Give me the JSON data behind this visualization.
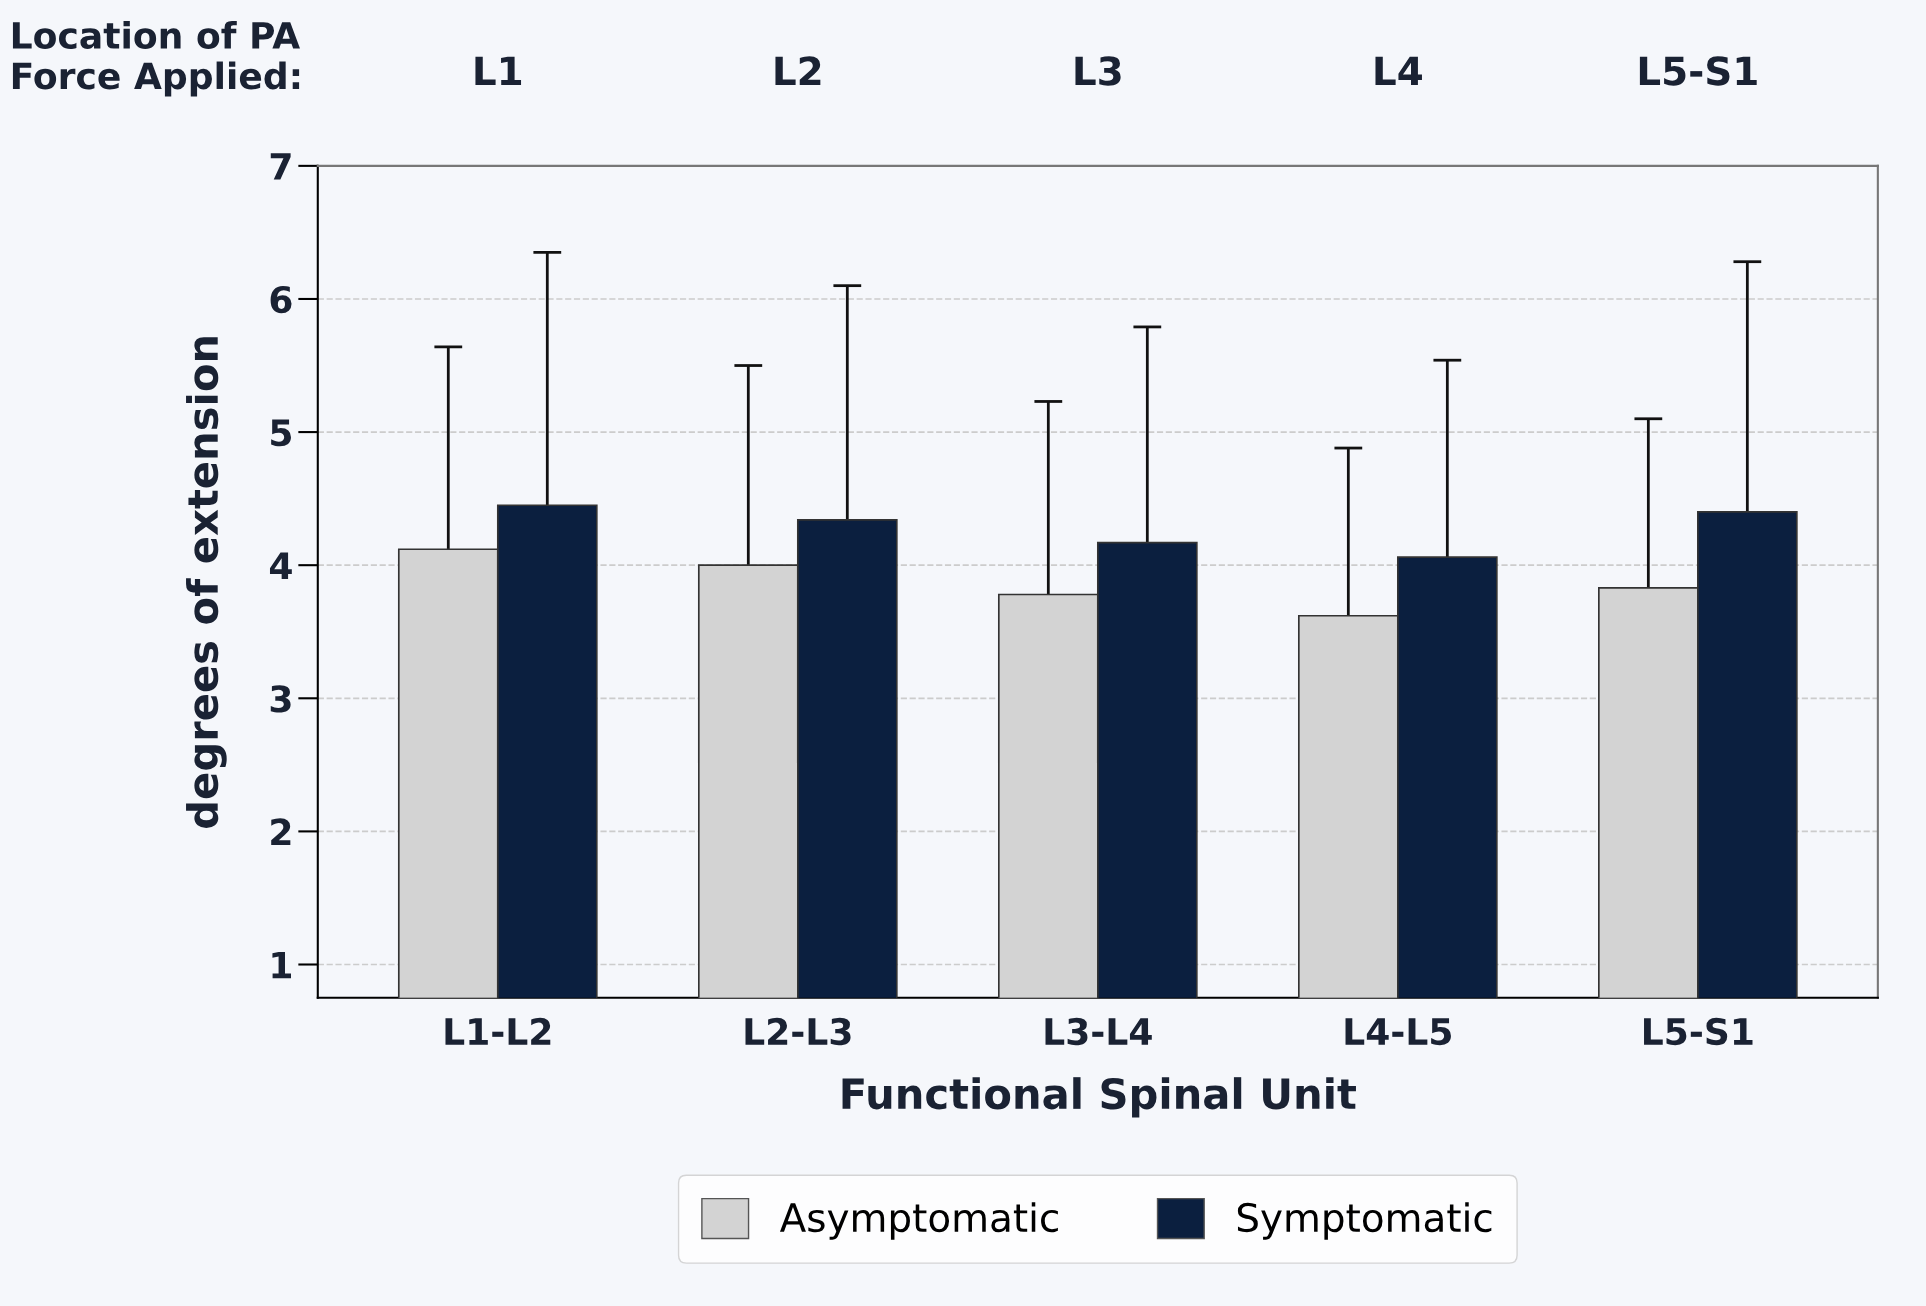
{
  "chart_data": {
    "type": "bar",
    "xlabel": "Functional Spinal Unit",
    "ylabel": "degrees of extension",
    "categories": [
      "L1-L2",
      "L2-L3",
      "L3-L4",
      "L4-L5",
      "L5-S1"
    ],
    "series": [
      {
        "name": "Asymptomatic",
        "color": "#d3d3d3",
        "values": [
          4.12,
          4.0,
          3.78,
          3.62,
          3.83
        ],
        "errors": [
          1.52,
          1.5,
          1.45,
          1.26,
          1.27
        ]
      },
      {
        "name": "Symptomatic",
        "color": "#0b1f3f",
        "values": [
          4.45,
          4.34,
          4.17,
          4.06,
          4.4
        ],
        "errors": [
          1.9,
          1.76,
          1.62,
          1.48,
          1.88
        ]
      }
    ],
    "ylim": [
      0.75,
      7
    ],
    "yticks": [
      1,
      2,
      3,
      4,
      5,
      6,
      7
    ],
    "grid": "y",
    "legend": "bottom",
    "annotations": [
      "Location of PA\nForce Applied:",
      "L1",
      "L2",
      "L3",
      "L4",
      "L5-S1"
    ]
  }
}
